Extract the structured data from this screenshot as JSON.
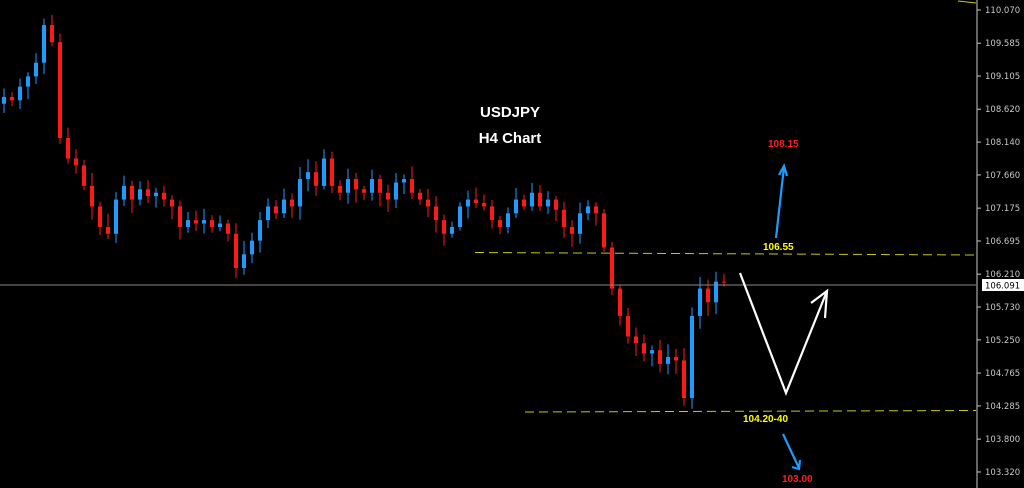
{
  "chart_data": {
    "type": "candlestick",
    "title": "USDJPY",
    "subtitle": "H4 Chart",
    "symbol": "USDJPY",
    "timeframe": "H4",
    "ylim": [
      103.0,
      110.2
    ],
    "y_ticks": [
      "110.070",
      "109.585",
      "109.105",
      "108.620",
      "108.140",
      "107.660",
      "107.175",
      "106.695",
      "106.210",
      "105.730",
      "105.250",
      "104.765",
      "104.285",
      "103.800",
      "103.320"
    ],
    "current_price": "106.091",
    "grid": false,
    "colors": {
      "up": "#1e9bff",
      "down": "#ff1a1a",
      "background": "#000000",
      "level_line": "#c8c816",
      "price_line": "#8a8a8a",
      "target_up": "#ff2020",
      "target_down": "#ff2020",
      "level_text": "#ffff00",
      "arrow_blue": "#1e9bff",
      "arrow_white": "#ffffff"
    },
    "closes": [
      108.7,
      108.8,
      108.75,
      108.95,
      109.1,
      109.3,
      109.85,
      109.6,
      108.2,
      107.9,
      107.8,
      107.5,
      107.2,
      106.9,
      106.8,
      107.3,
      107.5,
      107.3,
      107.45,
      107.35,
      107.4,
      107.3,
      107.2,
      106.9,
      107.0,
      106.95,
      107.0,
      106.9,
      106.95,
      106.8,
      106.3,
      106.5,
      106.7,
      107.0,
      107.2,
      107.1,
      107.3,
      107.2,
      107.6,
      107.7,
      107.5,
      107.9,
      107.5,
      107.4,
      107.6,
      107.45,
      107.4,
      107.6,
      107.4,
      107.3,
      107.55,
      107.6,
      107.4,
      107.3,
      107.2,
      107.0,
      106.8,
      106.9,
      107.2,
      107.3,
      107.25,
      107.2,
      107.0,
      106.9,
      107.1,
      107.3,
      107.2,
      107.4,
      107.2,
      107.3,
      107.15,
      106.9,
      106.8,
      107.1,
      107.2,
      107.1,
      106.6,
      106.0,
      105.6,
      105.3,
      105.2,
      105.05,
      105.1,
      104.9,
      105.0,
      104.95,
      104.4,
      105.6,
      106.0,
      105.8,
      106.1,
      106.09
    ],
    "levels": [
      {
        "price": 106.55,
        "label": "106.55"
      },
      {
        "price": 104.285,
        "label": "104.20-40"
      }
    ],
    "targets": [
      {
        "label": "108.15",
        "direction": "up"
      },
      {
        "label": "103.00",
        "direction": "down"
      }
    ]
  }
}
